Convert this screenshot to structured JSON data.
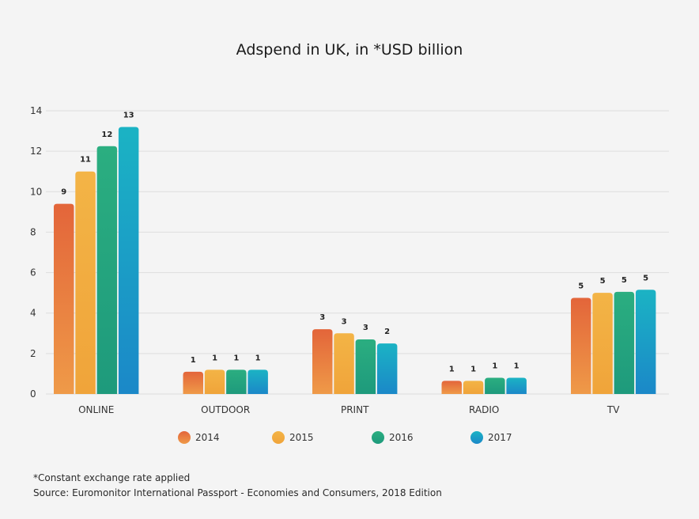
{
  "chart_data": {
    "type": "bar",
    "title": "Adspend in UK, in *USD billion",
    "xlabel": "",
    "ylabel": "",
    "ylim": [
      0,
      14
    ],
    "yticks": [
      0,
      2,
      4,
      6,
      8,
      10,
      12,
      14
    ],
    "grid": true,
    "legend_position": "bottom",
    "categories": [
      "ONLINE",
      "OUTDOOR",
      "PRINT",
      "RADIO",
      "TV"
    ],
    "series": [
      {
        "name": "2014",
        "values": [
          9.4,
          1.1,
          3.2,
          0.65,
          4.75
        ],
        "labels": [
          "9",
          "1",
          "3",
          "1",
          "5"
        ],
        "color_top": "#e3653a",
        "color_bottom": "#ef9a48"
      },
      {
        "name": "2015",
        "values": [
          11.0,
          1.2,
          3.0,
          0.65,
          5.0
        ],
        "labels": [
          "11",
          "1",
          "3",
          "1",
          "5"
        ],
        "color_top": "#f3b446",
        "color_bottom": "#f0a43a"
      },
      {
        "name": "2016",
        "values": [
          12.25,
          1.2,
          2.7,
          0.8,
          5.05
        ],
        "labels": [
          "12",
          "1",
          "3",
          "1",
          "5"
        ],
        "color_top": "#2bae80",
        "color_bottom": "#1e9a7c"
      },
      {
        "name": "2017",
        "values": [
          13.2,
          1.2,
          2.5,
          0.8,
          5.15
        ],
        "labels": [
          "13",
          "1",
          "2",
          "1",
          "5"
        ],
        "color_top": "#1bb3c4",
        "color_bottom": "#1b88c8"
      }
    ]
  },
  "footnotes": {
    "note": "*Constant exchange rate applied",
    "source": "Source: Euromonitor International Passport - Economies and Consumers, 2018 Edition"
  }
}
